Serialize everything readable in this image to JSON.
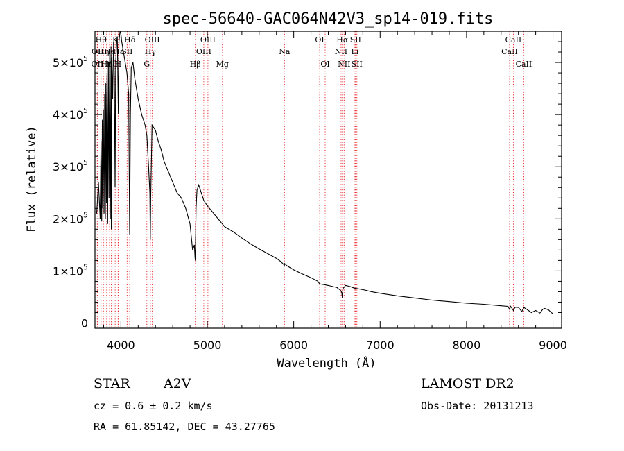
{
  "chart_data": {
    "type": "line",
    "title": "spec-56640-GAC064N42V3_sp14-019.fits",
    "xlabel": "Wavelength (Å)",
    "ylabel": "Flux (relative)",
    "xlim": [
      3700,
      9100
    ],
    "ylim": [
      -10000,
      560000
    ],
    "x_ticks": [
      {
        "value": 4000,
        "label": "4000"
      },
      {
        "value": 5000,
        "label": "5000"
      },
      {
        "value": 6000,
        "label": "6000"
      },
      {
        "value": 7000,
        "label": "7000"
      },
      {
        "value": 8000,
        "label": "8000"
      },
      {
        "value": 9000,
        "label": "9000"
      }
    ],
    "y_ticks": [
      {
        "value": 0,
        "mant": "0",
        "exp": ""
      },
      {
        "value": 100000,
        "mant": "1×10",
        "exp": "5"
      },
      {
        "value": 200000,
        "mant": "2×10",
        "exp": "5"
      },
      {
        "value": 300000,
        "mant": "3×10",
        "exp": "5"
      },
      {
        "value": 400000,
        "mant": "4×10",
        "exp": "5"
      },
      {
        "value": 500000,
        "mant": "5×10",
        "exp": "5"
      }
    ],
    "spectrum": {
      "x": [
        3720,
        3740,
        3760,
        3770,
        3778,
        3785,
        3790,
        3797,
        3805,
        3812,
        3820,
        3826,
        3833,
        3840,
        3847,
        3855,
        3862,
        3870,
        3878,
        3885,
        3889,
        3895,
        3905,
        3915,
        3925,
        3933,
        3940,
        3950,
        3958,
        3962,
        3970,
        3978,
        3990,
        4000,
        4010,
        4030,
        4050,
        4070,
        4090,
        4101,
        4110,
        4120,
        4140,
        4160,
        4200,
        4240,
        4280,
        4300,
        4320,
        4335,
        4340,
        4345,
        4360,
        4400,
        4430,
        4450,
        4470,
        4500,
        4550,
        4600,
        4650,
        4700,
        4750,
        4800,
        4830,
        4850,
        4858,
        4861,
        4864,
        4870,
        4880,
        4900,
        4930,
        4960,
        5000,
        5050,
        5100,
        5150,
        5200,
        5300,
        5400,
        5500,
        5600,
        5700,
        5800,
        5850,
        5885,
        5890,
        5895,
        5920,
        6000,
        6100,
        6200,
        6280,
        6300,
        6340,
        6400,
        6450,
        6500,
        6540,
        6555,
        6563,
        6570,
        6580,
        6600,
        6650,
        6700,
        6800,
        6900,
        7000,
        7200,
        7400,
        7600,
        7800,
        8000,
        8200,
        8400,
        8480,
        8498,
        8510,
        8542,
        8560,
        8600,
        8640,
        8662,
        8700,
        8750,
        8800,
        8850,
        8880,
        8900,
        8920,
        8950,
        8980,
        9000
      ],
      "y": [
        210000,
        270000,
        200000,
        350000,
        195000,
        390000,
        220000,
        410000,
        210000,
        440000,
        200000,
        460000,
        230000,
        480000,
        190000,
        500000,
        240000,
        520000,
        200000,
        530000,
        180000,
        510000,
        430000,
        540000,
        470000,
        260000,
        500000,
        540000,
        550000,
        500000,
        400000,
        540000,
        560000,
        555000,
        540000,
        520000,
        500000,
        480000,
        440000,
        170000,
        400000,
        490000,
        500000,
        470000,
        430000,
        400000,
        380000,
        360000,
        300000,
        250000,
        160000,
        240000,
        380000,
        370000,
        350000,
        340000,
        330000,
        310000,
        290000,
        270000,
        250000,
        240000,
        220000,
        190000,
        140000,
        150000,
        125000,
        120000,
        160000,
        220000,
        255000,
        265000,
        250000,
        235000,
        225000,
        215000,
        205000,
        195000,
        185000,
        175000,
        163000,
        152000,
        142000,
        133000,
        124000,
        118000,
        112000,
        108000,
        114000,
        110000,
        102000,
        94000,
        87000,
        80000,
        75000,
        74000,
        72000,
        70000,
        68000,
        63000,
        59000,
        48000,
        66000,
        68000,
        72000,
        70000,
        67000,
        64000,
        60000,
        57000,
        52000,
        48000,
        44000,
        41000,
        38000,
        36000,
        33000,
        32000,
        26000,
        32000,
        24000,
        30000,
        30000,
        22000,
        30000,
        26000,
        20000,
        24000,
        19000,
        26000,
        28000,
        27000,
        25000,
        20000,
        18000
      ]
    },
    "lines": [
      {
        "wavelength": 3727,
        "label": "OII",
        "row": 2
      },
      {
        "wavelength": 3730,
        "label": "OII",
        "row": 1
      },
      {
        "wavelength": 3770,
        "label": "Hθ",
        "row": 0
      },
      {
        "wavelength": 3798,
        "label": "Hη",
        "row": 1
      },
      {
        "wavelength": 3835,
        "label": "Hη",
        "row": 2
      },
      {
        "wavelength": 3869,
        "label": "He",
        "row": 1
      },
      {
        "wavelength": 3889,
        "label": "Hζ",
        "row": 2
      },
      {
        "wavelength": 3934,
        "label": "K",
        "row": 0
      },
      {
        "wavelength": 3968,
        "label": "H",
        "row": 2
      },
      {
        "wavelength": 3970,
        "label": "Hε",
        "row": 1
      },
      {
        "wavelength": 4072,
        "label": "SII",
        "row": 1
      },
      {
        "wavelength": 4102,
        "label": "Hδ",
        "row": 0
      },
      {
        "wavelength": 4300,
        "label": "G",
        "row": 2
      },
      {
        "wavelength": 4341,
        "label": "Hγ",
        "row": 1
      },
      {
        "wavelength": 4363,
        "label": "OIII",
        "row": 0
      },
      {
        "wavelength": 4861,
        "label": "Hβ",
        "row": 2
      },
      {
        "wavelength": 4959,
        "label": "OIII",
        "row": 1
      },
      {
        "wavelength": 5007,
        "label": "OIII",
        "row": 0
      },
      {
        "wavelength": 5175,
        "label": "Mg",
        "row": 2
      },
      {
        "wavelength": 5893,
        "label": "Na",
        "row": 1
      },
      {
        "wavelength": 6300,
        "label": "OI",
        "row": 0
      },
      {
        "wavelength": 6364,
        "label": "OI",
        "row": 2
      },
      {
        "wavelength": 6548,
        "label": "NII",
        "row": 1
      },
      {
        "wavelength": 6563,
        "label": "Hα",
        "row": 0
      },
      {
        "wavelength": 6583,
        "label": "NII",
        "row": 2
      },
      {
        "wavelength": 6708,
        "label": "Li",
        "row": 1
      },
      {
        "wavelength": 6716,
        "label": "SII",
        "row": 0
      },
      {
        "wavelength": 6731,
        "label": "SII",
        "row": 2
      },
      {
        "wavelength": 8498,
        "label": "CaII",
        "row": 1
      },
      {
        "wavelength": 8542,
        "label": "CaII",
        "row": 0
      },
      {
        "wavelength": 8662,
        "label": "CaII",
        "row": 2
      }
    ],
    "line_color": "#e8282e"
  },
  "info": {
    "object_class": "STAR",
    "subclass": "A2V",
    "cz": "cz = 0.6 ± 0.2 km/s",
    "coords": "RA =  61.85142, DEC =  43.27765",
    "survey": "LAMOST DR2",
    "obs_date": "Obs-Date: 20131213"
  }
}
